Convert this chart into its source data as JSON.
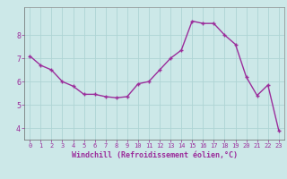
{
  "x": [
    0,
    1,
    2,
    3,
    4,
    5,
    6,
    7,
    8,
    9,
    10,
    11,
    12,
    13,
    14,
    15,
    16,
    17,
    18,
    19,
    20,
    21,
    22,
    23
  ],
  "y": [
    7.1,
    6.7,
    6.5,
    6.0,
    5.8,
    5.45,
    5.45,
    5.35,
    5.3,
    5.35,
    5.9,
    6.0,
    6.5,
    7.0,
    7.35,
    8.6,
    8.5,
    8.5,
    8.0,
    7.6,
    6.2,
    5.4,
    5.85,
    3.9
  ],
  "line_color": "#9b2d9b",
  "marker": "+",
  "marker_color": "#9b2d9b",
  "bg_color": "#cce8e8",
  "grid_color": "#aed4d4",
  "axis_color": "#9b2d9b",
  "tick_color": "#9b2d9b",
  "xlabel": "Windchill (Refroidissement éolien,°C)",
  "ylabel": "",
  "xlim": [
    -0.5,
    23.5
  ],
  "ylim": [
    3.5,
    9.2
  ],
  "yticks": [
    4,
    5,
    6,
    7,
    8
  ],
  "xticks": [
    0,
    1,
    2,
    3,
    4,
    5,
    6,
    7,
    8,
    9,
    10,
    11,
    12,
    13,
    14,
    15,
    16,
    17,
    18,
    19,
    20,
    21,
    22,
    23
  ],
  "font_family": "monospace",
  "xlabel_fontsize": 6,
  "tick_fontsize_x": 5,
  "tick_fontsize_y": 6,
  "linewidth": 1.0,
  "markersize": 3
}
